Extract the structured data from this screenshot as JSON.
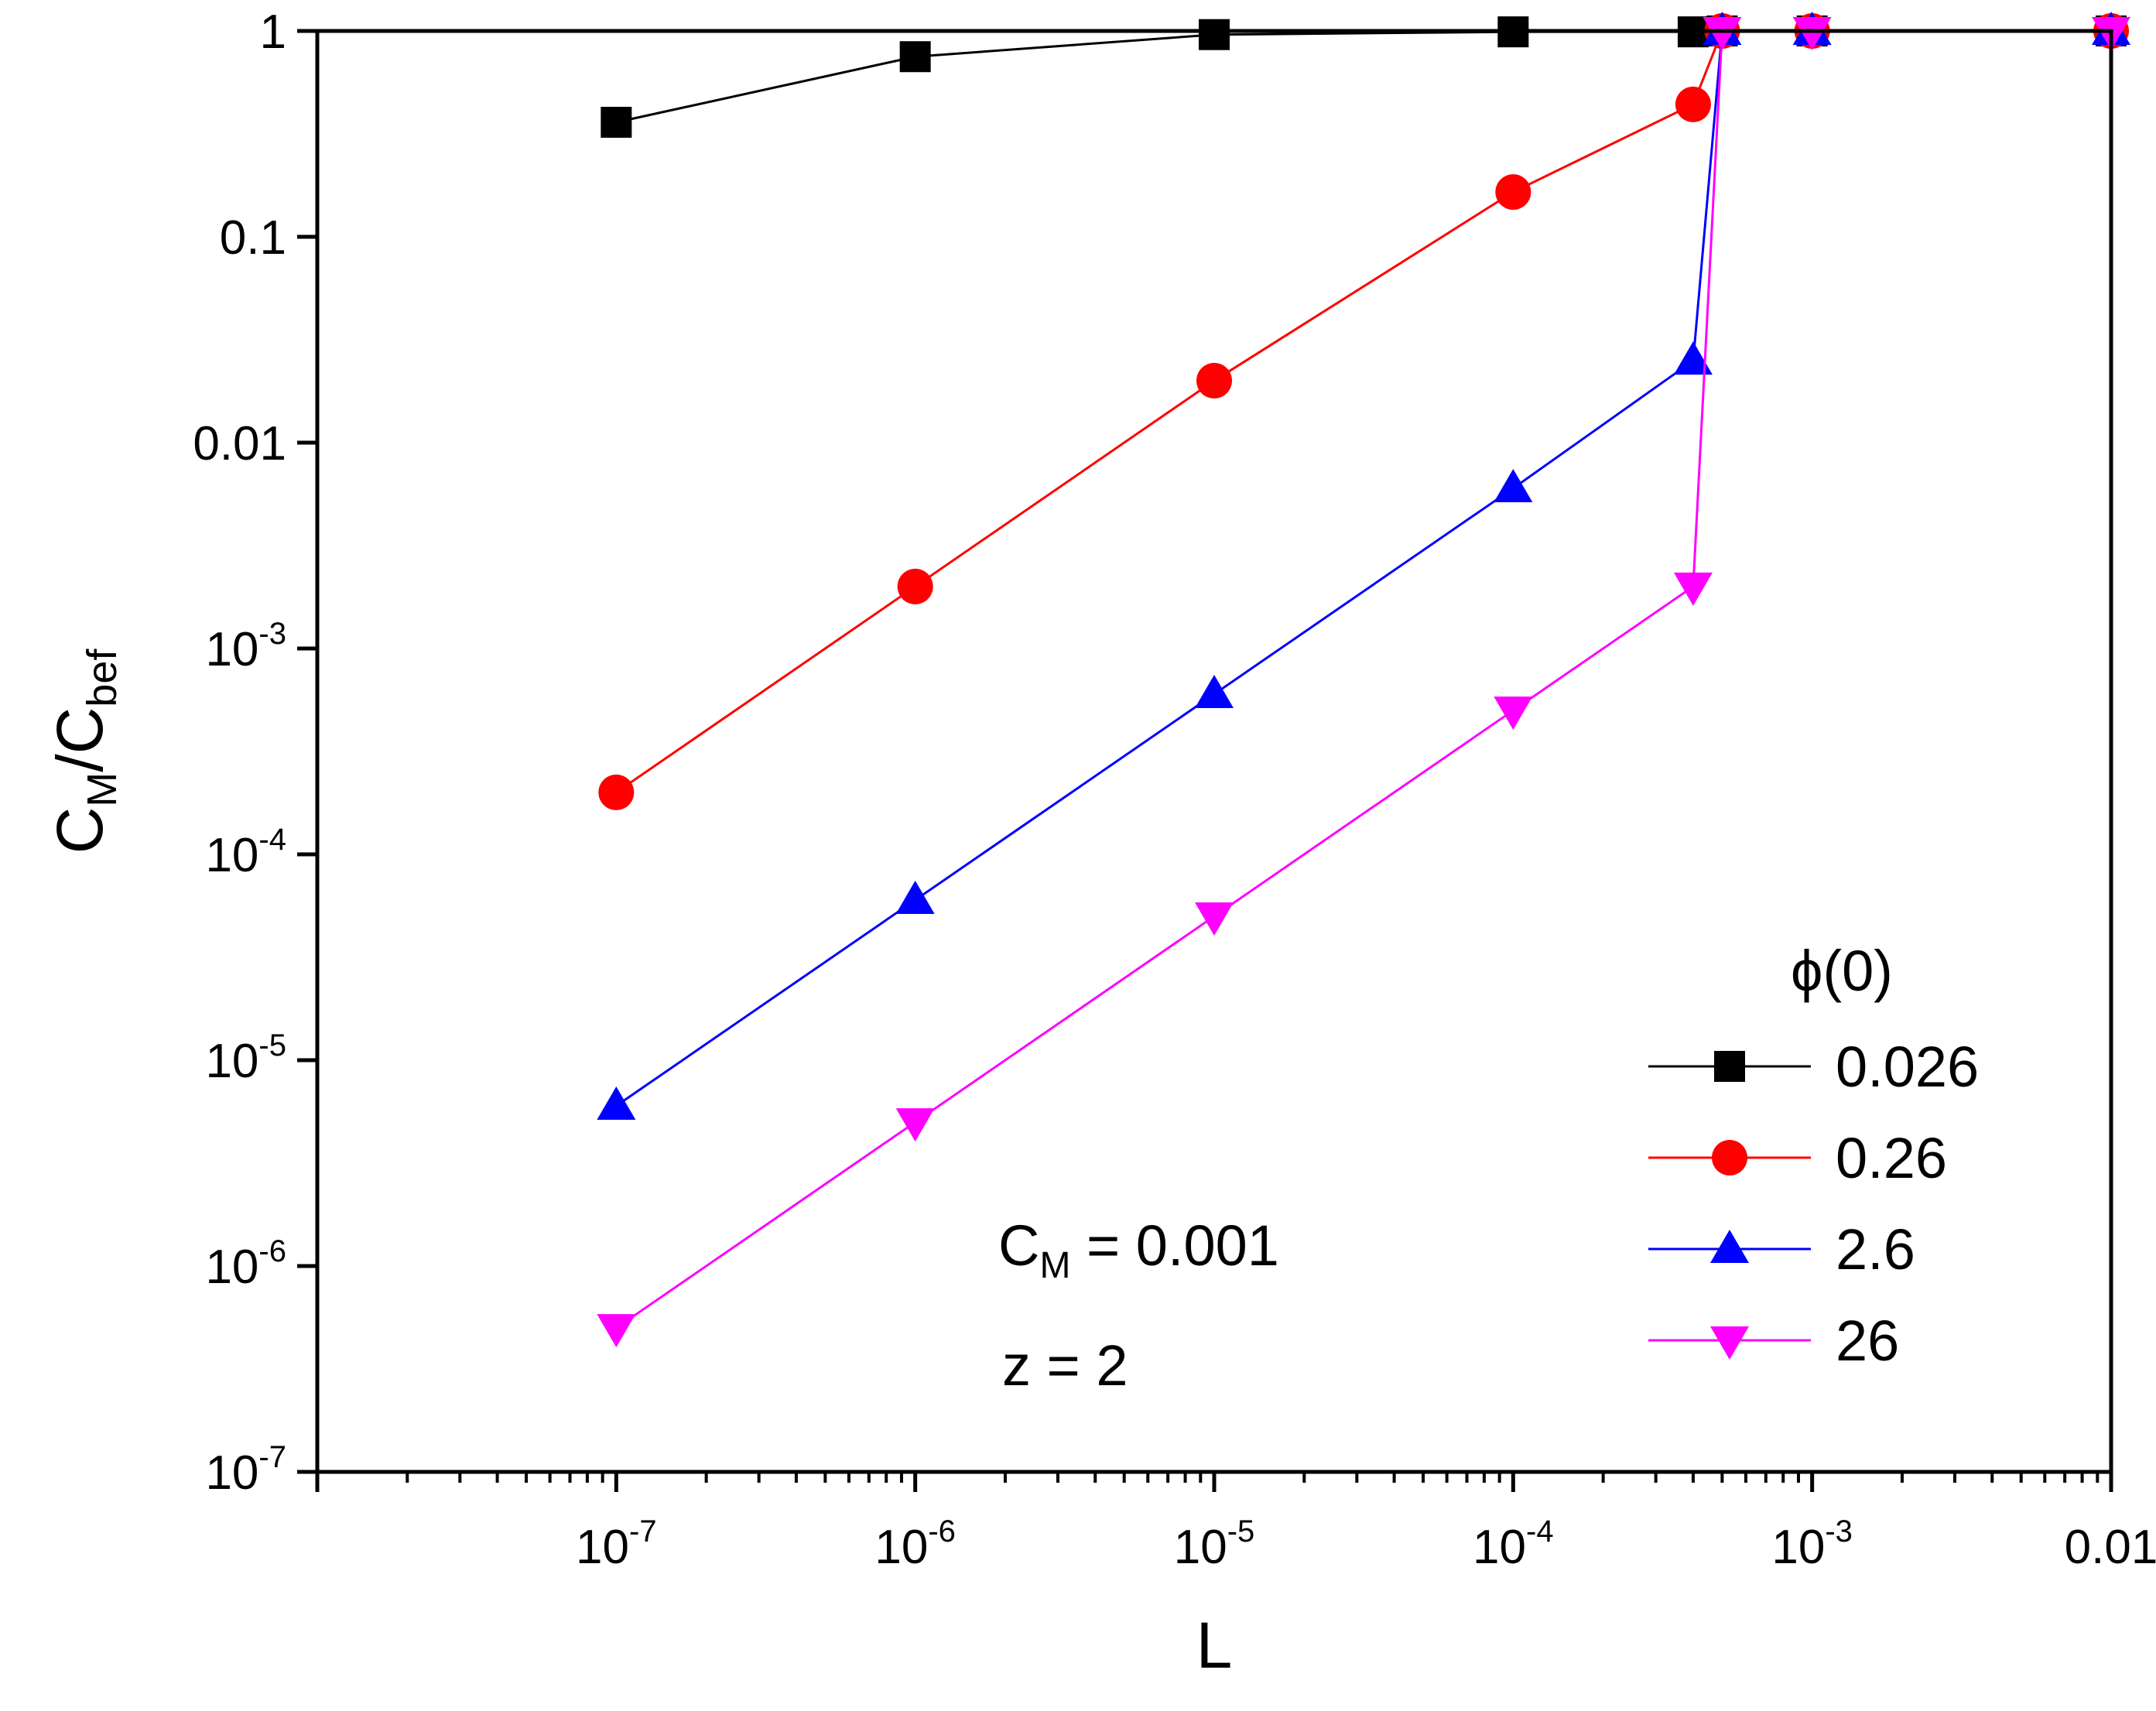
{
  "chart_data": {
    "type": "line",
    "x_scale": "log",
    "y_scale": "log",
    "xlim": [
      1e-08,
      0.01
    ],
    "ylim": [
      1e-07,
      1
    ],
    "xlabel": {
      "main": "L"
    },
    "ylabel": {
      "c1": "C",
      "s1": "M",
      "slash": "/",
      "c2": "C",
      "s2": "bef"
    },
    "x_ticks": [
      {
        "value": 1e-07,
        "base": "10",
        "exp": "-7"
      },
      {
        "value": 1e-06,
        "base": "10",
        "exp": "-6"
      },
      {
        "value": 1e-05,
        "base": "10",
        "exp": "-5"
      },
      {
        "value": 0.0001,
        "base": "10",
        "exp": "-4"
      },
      {
        "value": 0.001,
        "base": "10",
        "exp": "-3"
      },
      {
        "value": 0.01,
        "base": "0.01",
        "exp": ""
      }
    ],
    "y_ticks": [
      {
        "value": 1,
        "base": "1",
        "exp": ""
      },
      {
        "value": 0.1,
        "base": "0.1",
        "exp": ""
      },
      {
        "value": 0.01,
        "base": "0.01",
        "exp": ""
      },
      {
        "value": 0.001,
        "base": "10",
        "exp": "-3"
      },
      {
        "value": 0.0001,
        "base": "10",
        "exp": "-4"
      },
      {
        "value": 1e-05,
        "base": "10",
        "exp": "-5"
      },
      {
        "value": 1e-06,
        "base": "10",
        "exp": "-6"
      },
      {
        "value": 1e-07,
        "base": "10",
        "exp": "-7"
      }
    ],
    "legend": {
      "title": "ϕ(0)",
      "position": "bottom-right"
    },
    "annotations": {
      "cm_main": "C",
      "cm_sub": "M",
      "cm_rest": " = 0.001",
      "z_text": "z = 2"
    },
    "series": [
      {
        "name": "0.026",
        "color": "#000000",
        "marker": "square",
        "x": [
          1e-07,
          1e-06,
          1e-05,
          0.0001,
          0.0004,
          0.0005,
          0.001,
          0.01
        ],
        "y": [
          0.36,
          0.75,
          0.96,
          0.99,
          0.99,
          1.0,
          1.0,
          1.0
        ]
      },
      {
        "name": "0.26",
        "color": "#ff0000",
        "marker": "circle",
        "x": [
          1e-07,
          1e-06,
          1e-05,
          0.0001,
          0.0004,
          0.0005,
          0.001,
          0.01
        ],
        "y": [
          0.0002,
          0.002,
          0.02,
          0.165,
          0.44,
          1.0,
          1.0,
          1.0
        ]
      },
      {
        "name": "2.6",
        "color": "#0000ff",
        "marker": "triangle-up",
        "x": [
          1e-07,
          1e-06,
          1e-05,
          0.0001,
          0.0004,
          0.0005,
          0.001,
          0.01
        ],
        "y": [
          6e-06,
          6e-05,
          0.0006,
          0.006,
          0.025,
          1.0,
          1.0,
          1.0
        ]
      },
      {
        "name": "26",
        "color": "#ff00ff",
        "marker": "triangle-down",
        "x": [
          1e-07,
          1e-06,
          1e-05,
          0.0001,
          0.0004,
          0.0005,
          0.001,
          0.01
        ],
        "y": [
          5e-07,
          5e-06,
          5e-05,
          0.0005,
          0.002,
          1.0,
          1.0,
          1.0
        ]
      }
    ]
  }
}
